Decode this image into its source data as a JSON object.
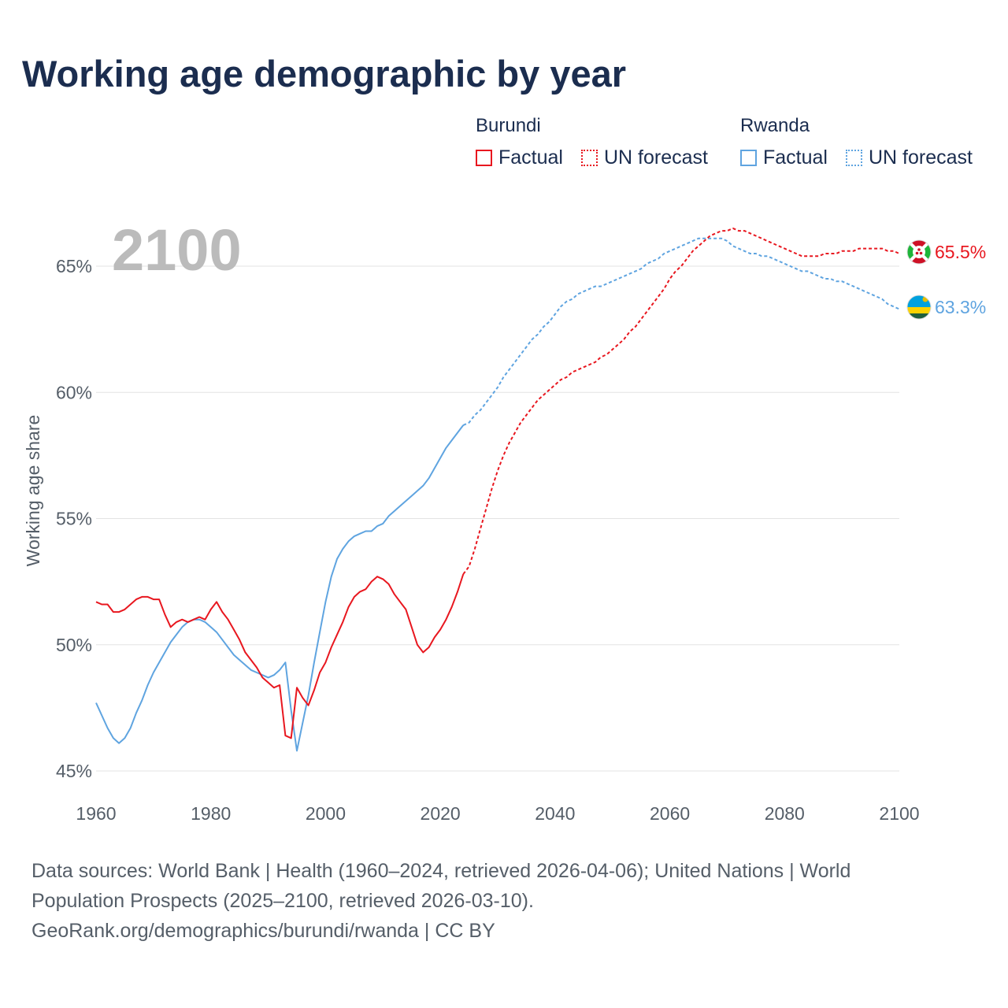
{
  "title": "Working age demographic by year",
  "legend": {
    "groups": [
      {
        "name": "Burundi",
        "factual": "Factual",
        "forecast": "UN forecast",
        "color": "#e8171f"
      },
      {
        "name": "Rwanda",
        "factual": "Factual",
        "forecast": "UN forecast",
        "color": "#5fa4e0"
      }
    ]
  },
  "footer": {
    "line1": "Data sources: World Bank | Health (1960–2024, retrieved 2026-04-06); United Nations | World",
    "line2": "Population Prospects (2025–2100, retrieved 2026-03-10).",
    "line3": "GeoRank.org/demographics/burundi/rwanda | CC BY"
  },
  "chart_data": {
    "type": "line",
    "title": "Working age demographic by year",
    "xlabel": "",
    "ylabel": "Working age share",
    "xlim": [
      1960,
      2100
    ],
    "ylim": [
      45,
      66.5
    ],
    "x_ticks": [
      1960,
      1980,
      2000,
      2020,
      2040,
      2060,
      2080,
      2100
    ],
    "y_ticks": [
      45,
      50,
      55,
      60,
      65
    ],
    "y_tick_labels": [
      "45%",
      "50%",
      "55%",
      "60%",
      "65%"
    ],
    "x_tick_labels": [
      "1960",
      "1980",
      "2000",
      "2020",
      "2040",
      "2060",
      "2080",
      "2100"
    ],
    "year_display": "2100",
    "series": [
      {
        "name": "Burundi",
        "color": "#e8171f",
        "end_label": "65.5%",
        "factual": [
          [
            1960,
            51.7
          ],
          [
            1961,
            51.6
          ],
          [
            1962,
            51.6
          ],
          [
            1963,
            51.3
          ],
          [
            1964,
            51.3
          ],
          [
            1965,
            51.4
          ],
          [
            1966,
            51.6
          ],
          [
            1967,
            51.8
          ],
          [
            1968,
            51.9
          ],
          [
            1969,
            51.9
          ],
          [
            1970,
            51.8
          ],
          [
            1971,
            51.8
          ],
          [
            1972,
            51.2
          ],
          [
            1973,
            50.7
          ],
          [
            1974,
            50.9
          ],
          [
            1975,
            51.0
          ],
          [
            1976,
            50.9
          ],
          [
            1977,
            51.0
          ],
          [
            1978,
            51.1
          ],
          [
            1979,
            51.0
          ],
          [
            1980,
            51.4
          ],
          [
            1981,
            51.7
          ],
          [
            1982,
            51.3
          ],
          [
            1983,
            51.0
          ],
          [
            1984,
            50.6
          ],
          [
            1985,
            50.2
          ],
          [
            1986,
            49.7
          ],
          [
            1987,
            49.4
          ],
          [
            1988,
            49.1
          ],
          [
            1989,
            48.7
          ],
          [
            1990,
            48.5
          ],
          [
            1991,
            48.3
          ],
          [
            1992,
            48.4
          ],
          [
            1993,
            46.4
          ],
          [
            1994,
            46.3
          ],
          [
            1995,
            48.3
          ],
          [
            1996,
            47.9
          ],
          [
            1997,
            47.6
          ],
          [
            1998,
            48.2
          ],
          [
            1999,
            48.9
          ],
          [
            2000,
            49.3
          ],
          [
            2001,
            49.9
          ],
          [
            2002,
            50.4
          ],
          [
            2003,
            50.9
          ],
          [
            2004,
            51.5
          ],
          [
            2005,
            51.9
          ],
          [
            2006,
            52.1
          ],
          [
            2007,
            52.2
          ],
          [
            2008,
            52.5
          ],
          [
            2009,
            52.7
          ],
          [
            2010,
            52.6
          ],
          [
            2011,
            52.4
          ],
          [
            2012,
            52.0
          ],
          [
            2013,
            51.7
          ],
          [
            2014,
            51.4
          ],
          [
            2015,
            50.7
          ],
          [
            2016,
            50.0
          ],
          [
            2017,
            49.7
          ],
          [
            2018,
            49.9
          ],
          [
            2019,
            50.3
          ],
          [
            2020,
            50.6
          ],
          [
            2021,
            51.0
          ],
          [
            2022,
            51.5
          ],
          [
            2023,
            52.1
          ],
          [
            2024,
            52.8
          ]
        ],
        "forecast": [
          [
            2024,
            52.8
          ],
          [
            2025,
            53.1
          ],
          [
            2026,
            53.8
          ],
          [
            2027,
            54.6
          ],
          [
            2028,
            55.4
          ],
          [
            2029,
            56.2
          ],
          [
            2030,
            56.9
          ],
          [
            2031,
            57.5
          ],
          [
            2032,
            58.0
          ],
          [
            2033,
            58.4
          ],
          [
            2034,
            58.8
          ],
          [
            2035,
            59.1
          ],
          [
            2036,
            59.4
          ],
          [
            2037,
            59.7
          ],
          [
            2038,
            59.9
          ],
          [
            2039,
            60.1
          ],
          [
            2040,
            60.3
          ],
          [
            2041,
            60.5
          ],
          [
            2042,
            60.6
          ],
          [
            2043,
            60.8
          ],
          [
            2044,
            60.9
          ],
          [
            2045,
            61.0
          ],
          [
            2046,
            61.1
          ],
          [
            2047,
            61.2
          ],
          [
            2048,
            61.4
          ],
          [
            2049,
            61.5
          ],
          [
            2050,
            61.7
          ],
          [
            2051,
            61.9
          ],
          [
            2052,
            62.1
          ],
          [
            2053,
            62.4
          ],
          [
            2054,
            62.6
          ],
          [
            2055,
            62.9
          ],
          [
            2056,
            63.2
          ],
          [
            2057,
            63.5
          ],
          [
            2058,
            63.8
          ],
          [
            2059,
            64.1
          ],
          [
            2060,
            64.5
          ],
          [
            2061,
            64.8
          ],
          [
            2062,
            65.0
          ],
          [
            2063,
            65.3
          ],
          [
            2064,
            65.6
          ],
          [
            2065,
            65.8
          ],
          [
            2066,
            66.0
          ],
          [
            2067,
            66.2
          ],
          [
            2068,
            66.3
          ],
          [
            2069,
            66.4
          ],
          [
            2070,
            66.4
          ],
          [
            2071,
            66.5
          ],
          [
            2072,
            66.4
          ],
          [
            2073,
            66.4
          ],
          [
            2074,
            66.3
          ],
          [
            2075,
            66.2
          ],
          [
            2076,
            66.1
          ],
          [
            2077,
            66.0
          ],
          [
            2078,
            65.9
          ],
          [
            2079,
            65.8
          ],
          [
            2080,
            65.7
          ],
          [
            2081,
            65.6
          ],
          [
            2082,
            65.5
          ],
          [
            2083,
            65.4
          ],
          [
            2084,
            65.4
          ],
          [
            2085,
            65.4
          ],
          [
            2086,
            65.4
          ],
          [
            2087,
            65.5
          ],
          [
            2088,
            65.5
          ],
          [
            2089,
            65.5
          ],
          [
            2090,
            65.6
          ],
          [
            2091,
            65.6
          ],
          [
            2092,
            65.6
          ],
          [
            2093,
            65.7
          ],
          [
            2094,
            65.7
          ],
          [
            2095,
            65.7
          ],
          [
            2096,
            65.7
          ],
          [
            2097,
            65.7
          ],
          [
            2098,
            65.6
          ],
          [
            2099,
            65.6
          ],
          [
            2100,
            65.5
          ]
        ]
      },
      {
        "name": "Rwanda",
        "color": "#5fa4e0",
        "end_label": "63.3%",
        "factual": [
          [
            1960,
            47.7
          ],
          [
            1961,
            47.2
          ],
          [
            1962,
            46.7
          ],
          [
            1963,
            46.3
          ],
          [
            1964,
            46.1
          ],
          [
            1965,
            46.3
          ],
          [
            1966,
            46.7
          ],
          [
            1967,
            47.3
          ],
          [
            1968,
            47.8
          ],
          [
            1969,
            48.4
          ],
          [
            1970,
            48.9
          ],
          [
            1971,
            49.3
          ],
          [
            1972,
            49.7
          ],
          [
            1973,
            50.1
          ],
          [
            1974,
            50.4
          ],
          [
            1975,
            50.7
          ],
          [
            1976,
            50.9
          ],
          [
            1977,
            51.0
          ],
          [
            1978,
            51.0
          ],
          [
            1979,
            50.9
          ],
          [
            1980,
            50.7
          ],
          [
            1981,
            50.5
          ],
          [
            1982,
            50.2
          ],
          [
            1983,
            49.9
          ],
          [
            1984,
            49.6
          ],
          [
            1985,
            49.4
          ],
          [
            1986,
            49.2
          ],
          [
            1987,
            49.0
          ],
          [
            1988,
            48.9
          ],
          [
            1989,
            48.8
          ],
          [
            1990,
            48.7
          ],
          [
            1991,
            48.8
          ],
          [
            1992,
            49.0
          ],
          [
            1993,
            49.3
          ],
          [
            1994,
            47.4
          ],
          [
            1995,
            45.8
          ],
          [
            1996,
            46.9
          ],
          [
            1997,
            48.0
          ],
          [
            1998,
            49.3
          ],
          [
            1999,
            50.5
          ],
          [
            2000,
            51.7
          ],
          [
            2001,
            52.7
          ],
          [
            2002,
            53.4
          ],
          [
            2003,
            53.8
          ],
          [
            2004,
            54.1
          ],
          [
            2005,
            54.3
          ],
          [
            2006,
            54.4
          ],
          [
            2007,
            54.5
          ],
          [
            2008,
            54.5
          ],
          [
            2009,
            54.7
          ],
          [
            2010,
            54.8
          ],
          [
            2011,
            55.1
          ],
          [
            2012,
            55.3
          ],
          [
            2013,
            55.5
          ],
          [
            2014,
            55.7
          ],
          [
            2015,
            55.9
          ],
          [
            2016,
            56.1
          ],
          [
            2017,
            56.3
          ],
          [
            2018,
            56.6
          ],
          [
            2019,
            57.0
          ],
          [
            2020,
            57.4
          ],
          [
            2021,
            57.8
          ],
          [
            2022,
            58.1
          ],
          [
            2023,
            58.4
          ],
          [
            2024,
            58.7
          ]
        ],
        "forecast": [
          [
            2024,
            58.7
          ],
          [
            2025,
            58.8
          ],
          [
            2026,
            59.1
          ],
          [
            2027,
            59.3
          ],
          [
            2028,
            59.6
          ],
          [
            2029,
            59.9
          ],
          [
            2030,
            60.2
          ],
          [
            2031,
            60.6
          ],
          [
            2032,
            60.9
          ],
          [
            2033,
            61.2
          ],
          [
            2034,
            61.5
          ],
          [
            2035,
            61.8
          ],
          [
            2036,
            62.1
          ],
          [
            2037,
            62.3
          ],
          [
            2038,
            62.6
          ],
          [
            2039,
            62.8
          ],
          [
            2040,
            63.1
          ],
          [
            2041,
            63.4
          ],
          [
            2042,
            63.6
          ],
          [
            2043,
            63.7
          ],
          [
            2044,
            63.9
          ],
          [
            2045,
            64.0
          ],
          [
            2046,
            64.1
          ],
          [
            2047,
            64.2
          ],
          [
            2048,
            64.2
          ],
          [
            2049,
            64.3
          ],
          [
            2050,
            64.4
          ],
          [
            2051,
            64.5
          ],
          [
            2052,
            64.6
          ],
          [
            2053,
            64.7
          ],
          [
            2054,
            64.8
          ],
          [
            2055,
            64.9
          ],
          [
            2056,
            65.1
          ],
          [
            2057,
            65.2
          ],
          [
            2058,
            65.3
          ],
          [
            2059,
            65.5
          ],
          [
            2060,
            65.6
          ],
          [
            2061,
            65.7
          ],
          [
            2062,
            65.8
          ],
          [
            2063,
            65.9
          ],
          [
            2064,
            66.0
          ],
          [
            2065,
            66.1
          ],
          [
            2066,
            66.1
          ],
          [
            2067,
            66.1
          ],
          [
            2068,
            66.1
          ],
          [
            2069,
            66.1
          ],
          [
            2070,
            66.0
          ],
          [
            2071,
            65.8
          ],
          [
            2072,
            65.7
          ],
          [
            2073,
            65.6
          ],
          [
            2074,
            65.5
          ],
          [
            2075,
            65.5
          ],
          [
            2076,
            65.4
          ],
          [
            2077,
            65.4
          ],
          [
            2078,
            65.3
          ],
          [
            2079,
            65.2
          ],
          [
            2080,
            65.1
          ],
          [
            2081,
            65.0
          ],
          [
            2082,
            64.9
          ],
          [
            2083,
            64.8
          ],
          [
            2084,
            64.8
          ],
          [
            2085,
            64.7
          ],
          [
            2086,
            64.6
          ],
          [
            2087,
            64.5
          ],
          [
            2088,
            64.5
          ],
          [
            2089,
            64.4
          ],
          [
            2090,
            64.4
          ],
          [
            2091,
            64.3
          ],
          [
            2092,
            64.2
          ],
          [
            2093,
            64.1
          ],
          [
            2094,
            64.0
          ],
          [
            2095,
            63.9
          ],
          [
            2096,
            63.8
          ],
          [
            2097,
            63.7
          ],
          [
            2098,
            63.5
          ],
          [
            2099,
            63.4
          ],
          [
            2100,
            63.3
          ]
        ]
      }
    ]
  }
}
